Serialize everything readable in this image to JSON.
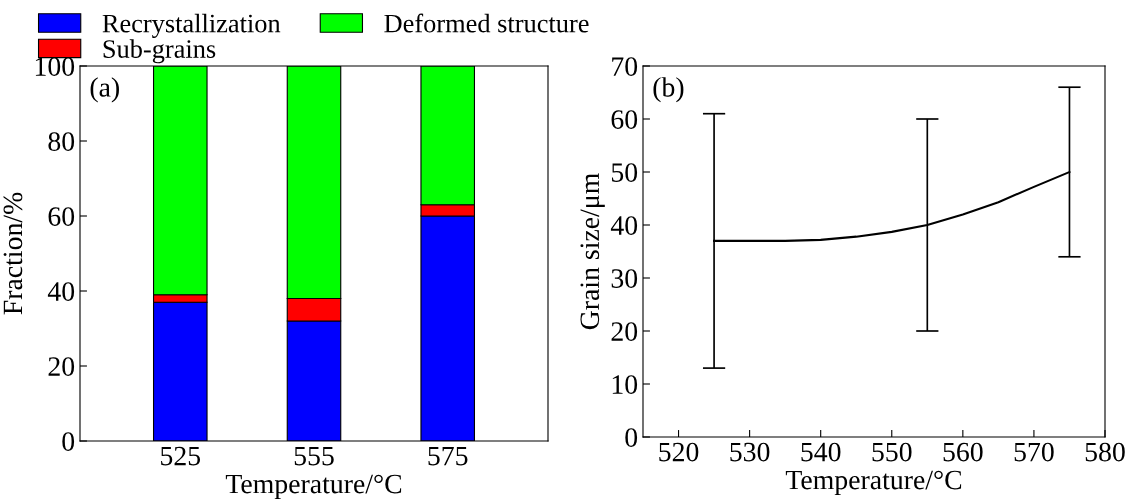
{
  "chart_data": [
    {
      "type": "bar",
      "stacked": true,
      "categories": [
        "525",
        "555",
        "575"
      ],
      "xlabel": "Temperature/°C",
      "ylabel": "Fraction/%",
      "ylim": [
        0,
        100
      ],
      "yticks": [
        0,
        20,
        40,
        60,
        80,
        100
      ],
      "legend": "top",
      "grid": false,
      "annotations": [
        "(a)"
      ],
      "series": [
        {
          "name": "Recrystallization",
          "color": "#0000ff",
          "values": [
            37,
            32,
            60
          ]
        },
        {
          "name": "Sub-grains",
          "color": "#ff0000",
          "values": [
            2,
            6,
            3
          ]
        },
        {
          "name": "Deformed structure",
          "color": "#00ff00",
          "values": [
            61,
            62,
            37
          ]
        }
      ]
    },
    {
      "type": "line",
      "x": [
        525,
        530,
        535,
        540,
        545,
        550,
        555,
        560,
        565,
        570,
        575
      ],
      "xlabel": "Temperature/°C",
      "ylabel": "Grain size/μm",
      "xlim": [
        515,
        580
      ],
      "xticks": [
        520,
        530,
        540,
        550,
        560,
        570,
        580
      ],
      "ylim": [
        0,
        70
      ],
      "yticks": [
        0,
        10,
        20,
        30,
        40,
        50,
        60,
        70
      ],
      "grid": false,
      "marker": "none",
      "line_style": "solid",
      "annotations": [
        "(b)"
      ],
      "series": [
        {
          "color": "#000000",
          "values": [
            37,
            37,
            37,
            37.2,
            37.8,
            38.7,
            40,
            42,
            44.3,
            47.2,
            50
          ],
          "errors": [
            [
              13,
              61
            ],
            null,
            null,
            null,
            null,
            null,
            [
              20,
              60
            ],
            null,
            null,
            null,
            [
              34,
              66
            ]
          ]
        }
      ]
    }
  ]
}
